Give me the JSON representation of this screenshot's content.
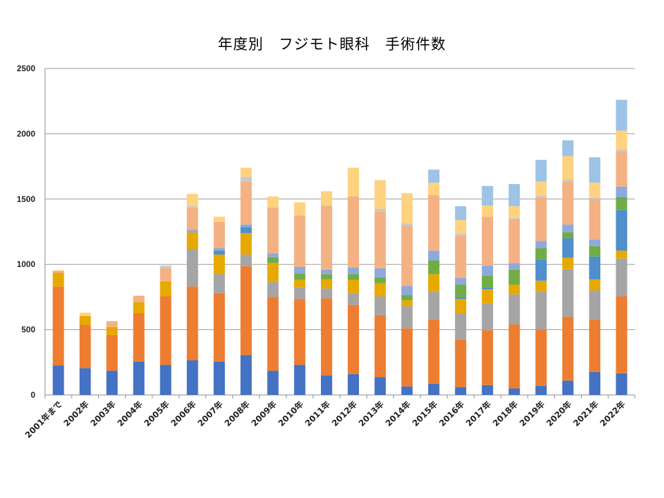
{
  "chart_data": {
    "type": "bar",
    "stacked": true,
    "title": "年度別　フジモト眼科　手術件数",
    "ylim": [
      0,
      2500
    ],
    "y_ticks": [
      0,
      500,
      1000,
      1500,
      2000,
      2500
    ],
    "grid": true,
    "legend": "none",
    "categories": [
      "2001年まで",
      "2002年",
      "2003年",
      "2004年",
      "2005年",
      "2006年",
      "2007年",
      "2008年",
      "2009年",
      "2010年",
      "2011年",
      "2012年",
      "2013年",
      "2014年",
      "2015年",
      "2016年",
      "2017年",
      "2018年",
      "2019年",
      "2020年",
      "2021年",
      "2022年"
    ],
    "series": [
      {
        "color": "#4472c4",
        "values": [
          225,
          205,
          185,
          255,
          230,
          265,
          255,
          305,
          185,
          230,
          150,
          160,
          135,
          65,
          85,
          60,
          75,
          50,
          70,
          110,
          175,
          165
        ]
      },
      {
        "color": "#ed7d31",
        "values": [
          605,
          330,
          275,
          370,
          525,
          565,
          525,
          680,
          565,
          505,
          590,
          530,
          475,
          445,
          490,
          365,
          420,
          490,
          430,
          490,
          400,
          590
        ]
      },
      {
        "color": "#a5a5a5",
        "values": [
          0,
          0,
          0,
          0,
          0,
          285,
          145,
          90,
          115,
          90,
          75,
          90,
          145,
          170,
          215,
          195,
          205,
          230,
          290,
          365,
          225,
          290
        ]
      },
      {
        "color": "#e7a900",
        "values": [
          105,
          70,
          60,
          85,
          115,
          130,
          150,
          165,
          145,
          55,
          70,
          100,
          100,
          45,
          135,
          115,
          110,
          75,
          85,
          85,
          85,
          60
        ]
      },
      {
        "color": "#4e8fcc",
        "values": [
          0,
          0,
          0,
          0,
          0,
          0,
          30,
          45,
          0,
          0,
          0,
          0,
          0,
          0,
          0,
          15,
          15,
          0,
          160,
          150,
          175,
          310
        ]
      },
      {
        "color": "#70ad47",
        "values": [
          0,
          0,
          0,
          0,
          0,
          0,
          0,
          0,
          45,
          50,
          40,
          45,
          45,
          40,
          105,
          95,
          90,
          115,
          90,
          45,
          80,
          100
        ]
      },
      {
        "color": "#8ea9db",
        "values": [
          0,
          0,
          0,
          0,
          0,
          20,
          20,
          20,
          30,
          50,
          35,
          50,
          70,
          70,
          75,
          50,
          75,
          50,
          55,
          60,
          50,
          80
        ]
      },
      {
        "color": "#f4b183",
        "values": [
          15,
          0,
          45,
          50,
          100,
          165,
          200,
          330,
          350,
          395,
          490,
          545,
          435,
          460,
          425,
          325,
          375,
          335,
          330,
          330,
          310,
          270
        ]
      },
      {
        "color": "#c9c9c9",
        "values": [
          0,
          0,
          0,
          0,
          20,
          15,
          0,
          35,
          0,
          0,
          0,
          0,
          20,
          20,
          0,
          15,
          0,
          10,
          15,
          15,
          10,
          15
        ]
      },
      {
        "color": "#ffd27f",
        "values": [
          5,
          25,
          0,
          0,
          0,
          95,
          40,
          70,
          85,
          100,
          110,
          220,
          220,
          230,
          95,
          105,
          85,
          90,
          110,
          180,
          115,
          145
        ]
      },
      {
        "color": "#9dc3e6",
        "values": [
          0,
          0,
          0,
          0,
          0,
          0,
          0,
          0,
          0,
          0,
          0,
          0,
          0,
          0,
          100,
          105,
          150,
          170,
          165,
          120,
          195,
          235
        ]
      }
    ]
  }
}
